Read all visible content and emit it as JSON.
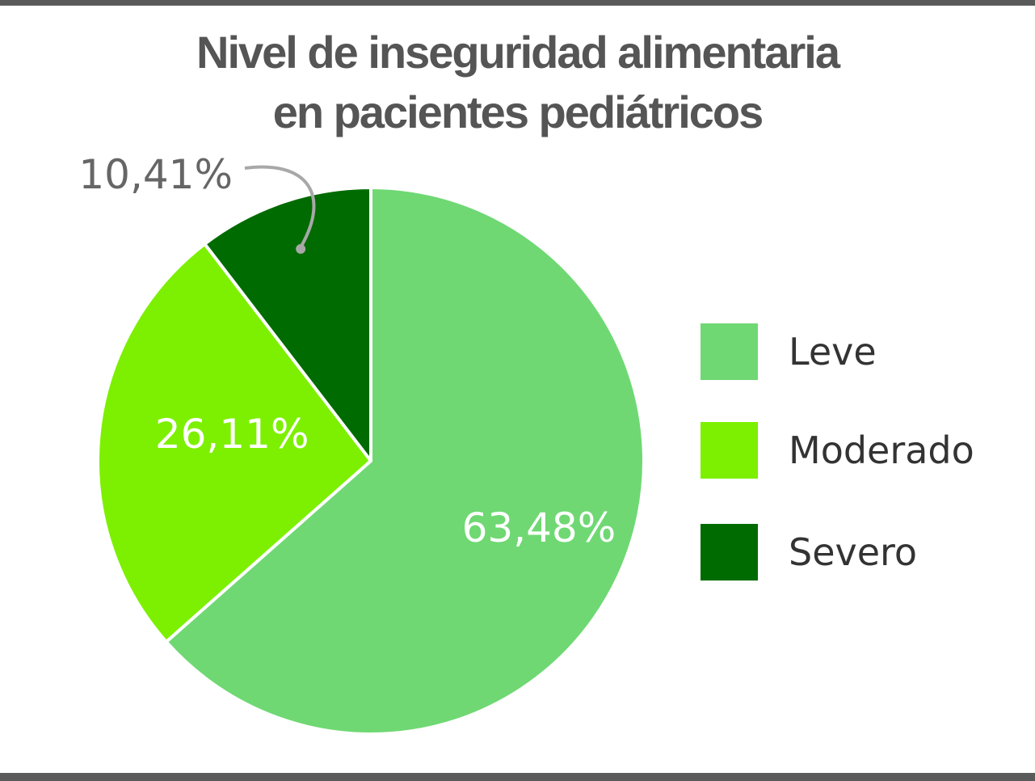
{
  "chart_data": {
    "type": "pie",
    "title": "Nivel de inseguridad alimentaria en pacientes pediátricos",
    "title_lines": [
      "Nivel de inseguridad alimentaria",
      "en pacientes pediátricos"
    ],
    "slices": [
      {
        "name": "Leve",
        "value": 63.48,
        "label": "63,48%",
        "color": "#6fd873"
      },
      {
        "name": "Moderado",
        "value": 26.11,
        "label": "26,11%",
        "color": "#7cf000"
      },
      {
        "name": "Severo",
        "value": 10.41,
        "label": "10,41%",
        "color": "#006b00"
      }
    ],
    "legend_position": "right",
    "slice_label_color": "#ffffff",
    "callout_label_color": "#666666",
    "callout_line_color": "#a8a8a8"
  }
}
